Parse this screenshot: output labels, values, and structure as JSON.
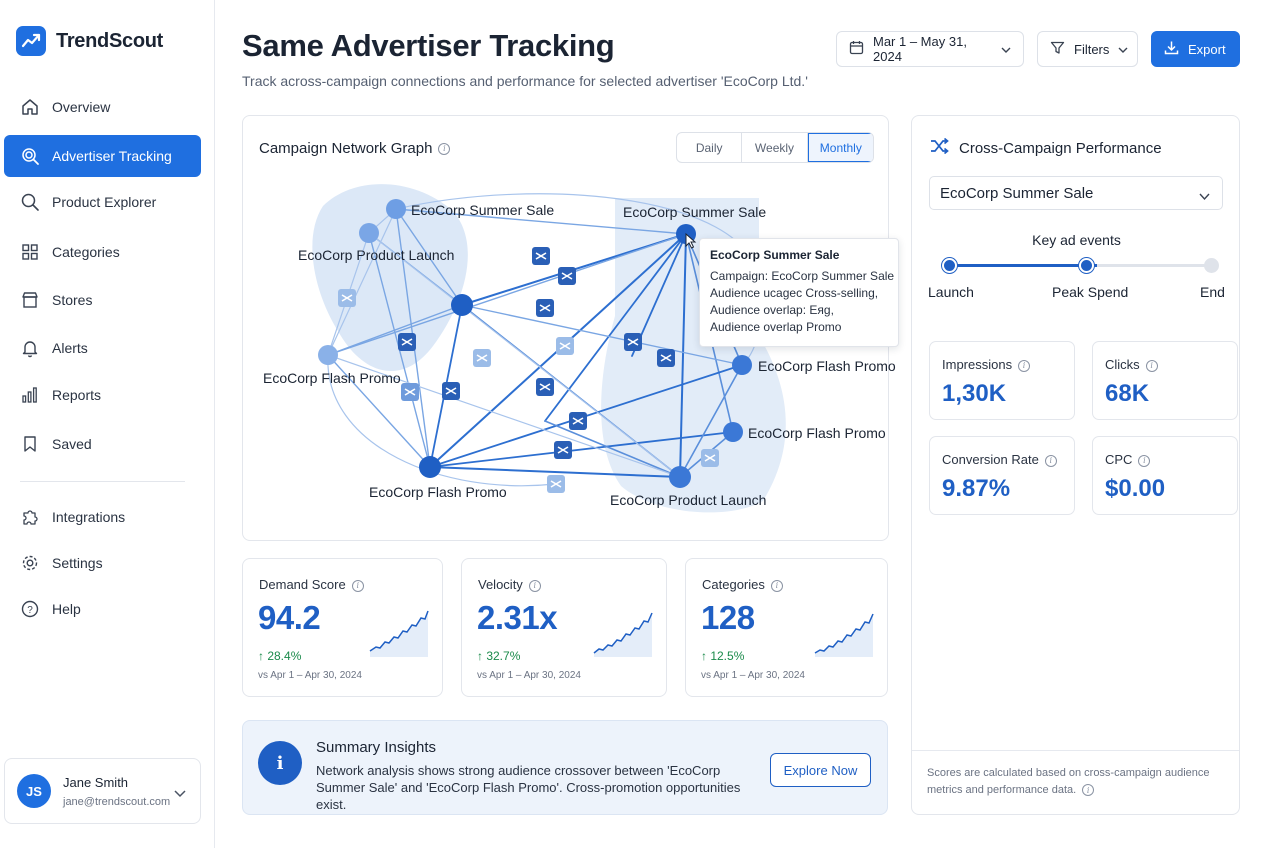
{
  "app": {
    "name": "TrendScout"
  },
  "sidebar": {
    "items": [
      {
        "label": "Overview",
        "icon": "home-icon"
      },
      {
        "label": "Advertiser Tracking",
        "icon": "target-search-icon",
        "active": true
      },
      {
        "label": "Product Explorer",
        "icon": "search-icon"
      },
      {
        "label": "Categories",
        "icon": "grid-icon"
      },
      {
        "label": "Stores",
        "icon": "store-icon"
      },
      {
        "label": "Alerts",
        "icon": "bell-icon"
      },
      {
        "label": "Reports",
        "icon": "bar-chart-icon"
      },
      {
        "label": "Saved",
        "icon": "bookmark-icon"
      }
    ],
    "secondary": [
      {
        "label": "Integrations",
        "icon": "puzzle-icon"
      },
      {
        "label": "Settings",
        "icon": "gear-icon"
      },
      {
        "label": "Help",
        "icon": "help-icon"
      }
    ],
    "user": {
      "initials": "JS",
      "name": "Jane Smith",
      "email": "jane@trendscout.com"
    }
  },
  "header": {
    "title": "Same Advertiser Tracking",
    "subtitle": "Track across-campaign connections and performance for selected advertiser 'EcoCorp Ltd.'",
    "date_range": "Mar 1 – May 31, 2024",
    "filters_label": "Filters",
    "export_label": "Export"
  },
  "network": {
    "title": "Campaign Network Graph",
    "toggle": [
      "Daily",
      "Weekly",
      "Monthly"
    ],
    "toggle_active": "Monthly",
    "node_labels": [
      "EcoCorp Summer Sale",
      "EcoCorp Product Launch",
      "EcoCorp Flash Promo",
      "EcoCorp Flash Promo",
      "EcoCorp Summer Sale",
      "EcoCorp Flash Promo",
      "EcoCorp Flash Promo",
      "EcoCorp Product Launch"
    ],
    "tooltip": {
      "title": "EcoCorp Summer Sale",
      "lines": [
        "Campaign: EcoCorp Summer Sale",
        "Audience ucagec Cross-selling,",
        "Audience overlap: Eяg,",
        "Audience overlap Promo"
      ]
    }
  },
  "metrics": [
    {
      "label": "Demand Score",
      "value": "94.2",
      "delta": "↑ 28.4%",
      "period": "vs Apr 1 – Apr 30, 2024"
    },
    {
      "label": "Velocity",
      "value": "2.31x",
      "delta": "↑ 32.7%",
      "period": "vs Apr 1 – Apr 30, 2024"
    },
    {
      "label": "Categories",
      "value": "128",
      "delta": "↑ 12.5%",
      "period": "vs Apr 1 – Apr 30, 2024"
    }
  ],
  "insights": {
    "title": "Summary Insights",
    "text": "Network analysis shows strong audience crossover between 'EcoCorp Summer Sale' and 'EcoCorp Flash Promo'. Cross-promotion opportunities exist.",
    "button": "Explore Now"
  },
  "cross_campaign": {
    "title": "Cross-Campaign Performance",
    "selected_campaign": "EcoCorp Summer Sale",
    "timeline_title": "Key ad events",
    "timeline": [
      "Launch",
      "Peak Spend",
      "End"
    ],
    "timeline_progress": 0.56,
    "stats": [
      {
        "label": "Impressions",
        "value": "1,30K"
      },
      {
        "label": "Clicks",
        "value": "68K"
      },
      {
        "label": "Conversion Rate",
        "value": "9.87%"
      },
      {
        "label": "CPC",
        "value": "$0.00"
      }
    ],
    "footnote": "Scores are calculated based on cross-campaign audience metrics and performance data."
  },
  "colors": {
    "accent": "#1f6fe0",
    "value_blue": "#1f5fc4",
    "positive": "#1a8a4a"
  }
}
